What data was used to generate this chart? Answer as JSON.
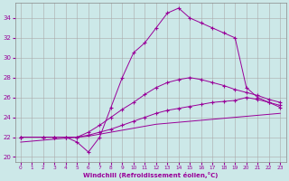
{
  "xlabel": "Windchill (Refroidissement éolien,°C)",
  "xlim": [
    -0.5,
    23.5
  ],
  "ylim": [
    19.5,
    35.5
  ],
  "yticks": [
    20,
    22,
    24,
    26,
    28,
    30,
    32,
    34
  ],
  "xticks": [
    0,
    1,
    2,
    3,
    4,
    5,
    6,
    7,
    8,
    9,
    10,
    11,
    12,
    13,
    14,
    15,
    16,
    17,
    18,
    19,
    20,
    21,
    22,
    23
  ],
  "bg_color": "#cce8e8",
  "line_color": "#990099",
  "grid_color": "#aaaaaa",
  "series": [
    {
      "x": [
        0,
        2,
        3,
        4,
        5,
        6,
        7,
        8,
        9,
        10,
        11,
        12,
        13,
        14,
        15,
        16,
        17,
        18,
        19,
        20,
        21,
        22,
        23
      ],
      "y": [
        21.5,
        21.7,
        21.8,
        21.9,
        22.0,
        22.1,
        22.3,
        22.5,
        22.7,
        22.9,
        23.1,
        23.3,
        23.4,
        23.5,
        23.6,
        23.7,
        23.8,
        23.9,
        24.0,
        24.1,
        24.2,
        24.3,
        24.4
      ],
      "marker": null,
      "linestyle": "-"
    },
    {
      "x": [
        0,
        2,
        3,
        4,
        5,
        6,
        7,
        8,
        9,
        10,
        11,
        12,
        13,
        14,
        15,
        16,
        17,
        18,
        19,
        20,
        21,
        22,
        23
      ],
      "y": [
        22.0,
        22.0,
        22.0,
        22.0,
        22.0,
        22.2,
        22.5,
        22.8,
        23.2,
        23.6,
        24.0,
        24.4,
        24.7,
        24.9,
        25.1,
        25.3,
        25.5,
        25.6,
        25.7,
        26.0,
        25.8,
        25.5,
        25.2
      ],
      "marker": "+",
      "linestyle": "-"
    },
    {
      "x": [
        0,
        2,
        3,
        4,
        5,
        6,
        7,
        8,
        9,
        10,
        11,
        12,
        13,
        14,
        15,
        16,
        17,
        18,
        19,
        20,
        21,
        22,
        23
      ],
      "y": [
        22.0,
        22.0,
        22.0,
        22.0,
        22.0,
        22.5,
        23.2,
        24.0,
        24.8,
        25.5,
        26.3,
        27.0,
        27.5,
        27.8,
        28.0,
        27.8,
        27.5,
        27.2,
        26.8,
        26.5,
        26.2,
        25.8,
        25.5
      ],
      "marker": "+",
      "linestyle": "-"
    },
    {
      "x": [
        0,
        2,
        3,
        4,
        5,
        6,
        7,
        8,
        9,
        10,
        11,
        12,
        13,
        14,
        15,
        16,
        17,
        18,
        19,
        20,
        21,
        22,
        23
      ],
      "y": [
        22.0,
        22.0,
        22.0,
        22.0,
        21.5,
        20.5,
        22.0,
        25.0,
        28.0,
        30.5,
        31.5,
        33.0,
        34.5,
        35.0,
        34.0,
        33.5,
        33.0,
        32.5,
        32.0,
        27.0,
        26.0,
        25.5,
        25.0
      ],
      "marker": "+",
      "linestyle": "-"
    }
  ]
}
